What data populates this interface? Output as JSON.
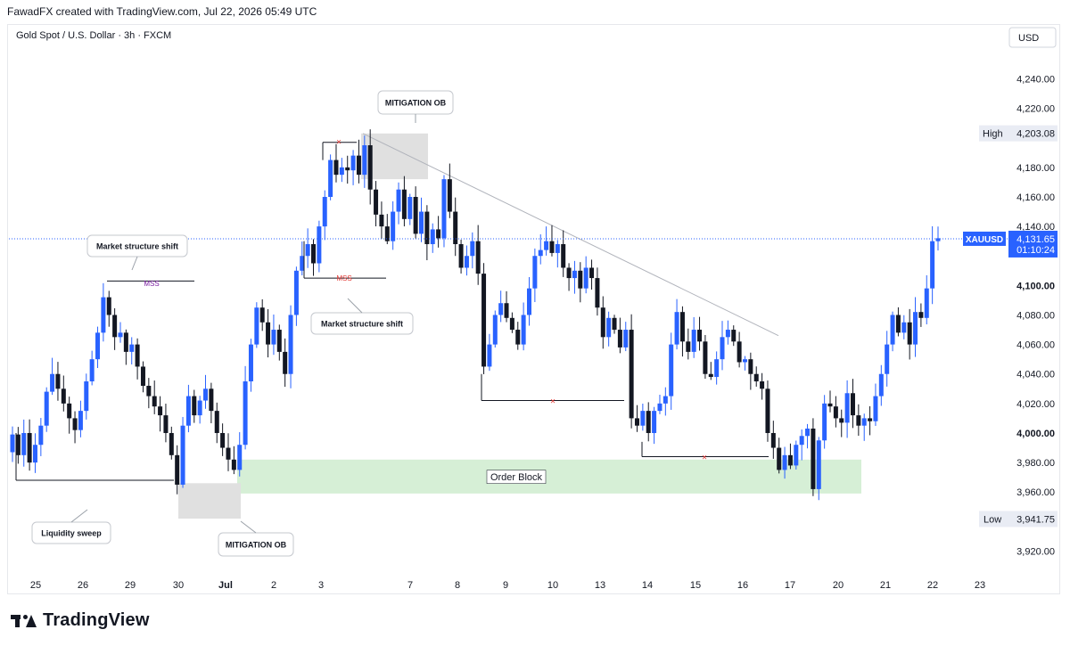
{
  "header": {
    "created_by": "FawadFX created with TradingView.com, Jul 22, 2026 05:49 UTC",
    "symbol_title": "Gold Spot / U.S. Dollar · 3h · FXCM",
    "currency": "USD"
  },
  "brand": {
    "name": "TradingView",
    "icon": "tradingview-logo-icon"
  },
  "colors": {
    "up": "#2962ff",
    "down": "#131722",
    "order_block": "#d6efd6",
    "mitigation": "#e0e0e0",
    "mss": "#e53935",
    "mss_purple": "#7b1fa2",
    "price_line": "#2962ff"
  },
  "chart_data": {
    "type": "candlestick",
    "ylim": [
      3907,
      4256
    ],
    "grid": false,
    "y_ticks": [
      3920,
      3940,
      3960,
      3980,
      4000,
      4020,
      4040,
      4060,
      4080,
      4100,
      4120,
      4140,
      4160,
      4180,
      4200,
      4220,
      4240
    ],
    "y_tick_labels": [
      "3,920.00",
      "",
      "3,960.00",
      "3,980.00",
      "4,000.00",
      "4,020.00",
      "4,040.00",
      "4,060.00",
      "4,080.00",
      "4,100.00",
      "",
      "4,140.00",
      "4,160.00",
      "4,180.00",
      "",
      "4,220.00",
      "4,240.00"
    ],
    "x_labels": [
      "25",
      "26",
      "29",
      "30",
      "Jul",
      "2",
      "3",
      "7",
      "8",
      "9",
      "10",
      "13",
      "14",
      "15",
      "16",
      "17",
      "20",
      "21",
      "22",
      "23"
    ],
    "price_label": {
      "symbol": "XAUUSD",
      "price": "4,131.65",
      "countdown": "01:10:24",
      "value": 4131.65
    },
    "high_label": {
      "label": "High",
      "value": "4,203.08",
      "price": 4203.08
    },
    "low_label": {
      "label": "Low",
      "value": "3,941.75",
      "price": 3941.75
    },
    "closes": [
      3999,
      3985,
      4000,
      3980,
      3992,
      4005,
      4028,
      4040,
      4030,
      4020,
      4010,
      4002,
      4015,
      4035,
      4050,
      4068,
      4092,
      4080,
      4065,
      4068,
      4055,
      4060,
      4045,
      4032,
      4025,
      4018,
      4012,
      4000,
      3985,
      3965,
      4005,
      4025,
      4012,
      4022,
      4030,
      4015,
      4000,
      3990,
      3982,
      3975,
      3992,
      4035,
      4060,
      4085,
      4075,
      4060,
      4070,
      4055,
      4040,
      4080,
      4110,
      4120,
      4128,
      4115,
      4140,
      4160,
      4185,
      4175,
      4180,
      4178,
      4188,
      4175,
      4195,
      4165,
      4148,
      4140,
      4130,
      4150,
      4165,
      4145,
      4160,
      4135,
      4150,
      4128,
      4138,
      4132,
      4172,
      4150,
      4128,
      4112,
      4120,
      4130,
      4108,
      4045,
      4060,
      4080,
      4088,
      4078,
      4070,
      4060,
      4080,
      4098,
      4120,
      4124,
      4130,
      4122,
      4128,
      4112,
      4105,
      4110,
      4098,
      4112,
      4105,
      4085,
      4065,
      4078,
      4070,
      4058,
      4070,
      4010,
      4005,
      4015,
      4000,
      4015,
      4020,
      4025,
      4060,
      4082,
      4062,
      4055,
      4070,
      4062,
      4040,
      4038,
      4050,
      4065,
      4070,
      4062,
      4048,
      4050,
      4040,
      4035,
      4030,
      4000,
      3990,
      3975,
      3985,
      3978,
      3992,
      3998,
      4003,
      3962,
      3995,
      4020,
      4018,
      4010,
      4007,
      4027,
      4012,
      4005,
      4010,
      4008,
      4025,
      4040,
      4060,
      4080,
      4068,
      4075,
      4060,
      4082,
      4078,
      4098,
      4130,
      4132
    ],
    "annotations": {
      "labels": [
        "Market structure shift",
        "Liquidity sweep",
        "MITIGATION OB",
        "MITIGATION OB",
        "Market structure shift"
      ],
      "mss_top_left": "MSS",
      "mss_mid": "MSS",
      "order_block": "Order Block",
      "cross": "×"
    }
  }
}
